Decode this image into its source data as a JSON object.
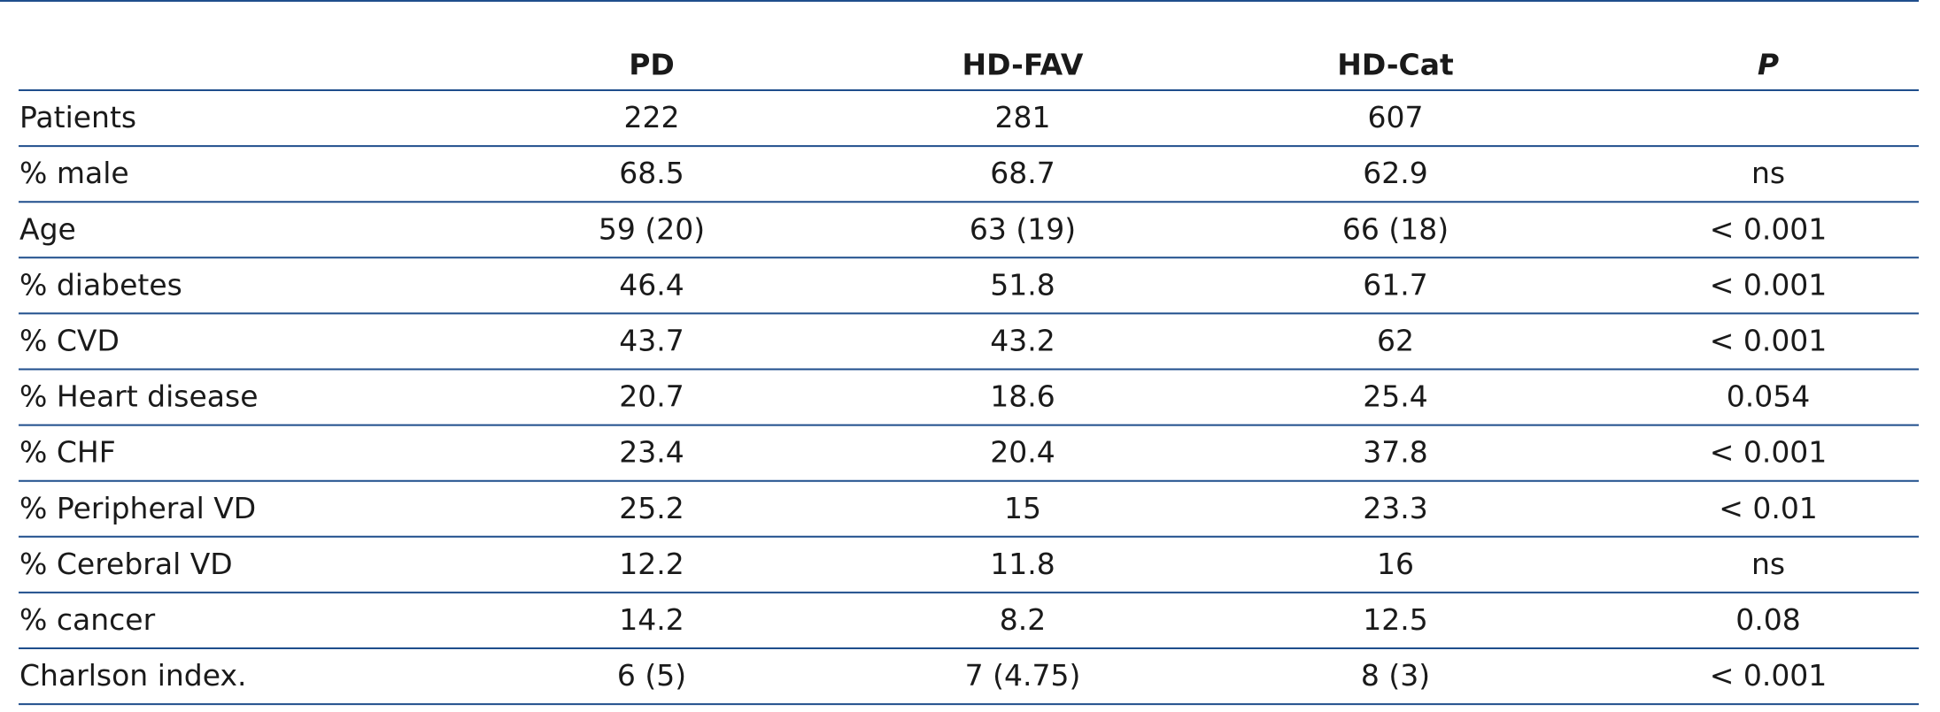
{
  "table": {
    "columns": [
      "PD",
      "HD-FAV",
      "HD-Cat",
      "P"
    ],
    "rows": [
      [
        "Patients",
        "222",
        "281",
        "607"
      ],
      [
        "% male",
        "68.5",
        "68.7",
        "62.9",
        "ns"
      ],
      [
        "Age",
        "59 (20)",
        "63 (19)",
        "66 (18)",
        "< 0.001"
      ],
      [
        "% diabetes",
        "46.4",
        "51.8",
        "61.7",
        "< 0.001"
      ],
      [
        "% CVD",
        "43.7",
        "43.2",
        "62",
        "< 0.001"
      ],
      [
        "% Heart disease",
        "20.7",
        "18.6",
        "25.4",
        "0.054"
      ],
      [
        "% CHF",
        "23.4",
        "20.4",
        "37.8",
        "< 0.001"
      ],
      [
        "% Peripheral VD",
        "25.2",
        "15",
        "23.3",
        "< 0.01"
      ],
      [
        "% Cerebral VD",
        "12.2",
        "11.8",
        "16",
        "ns"
      ],
      [
        "% cancer",
        "14.2",
        "8.2",
        "12.5",
        "0.08"
      ],
      [
        "Charlson index.",
        "6 (5)",
        "7 (4.75)",
        "8 (3)",
        "< 0.001"
      ]
    ]
  }
}
